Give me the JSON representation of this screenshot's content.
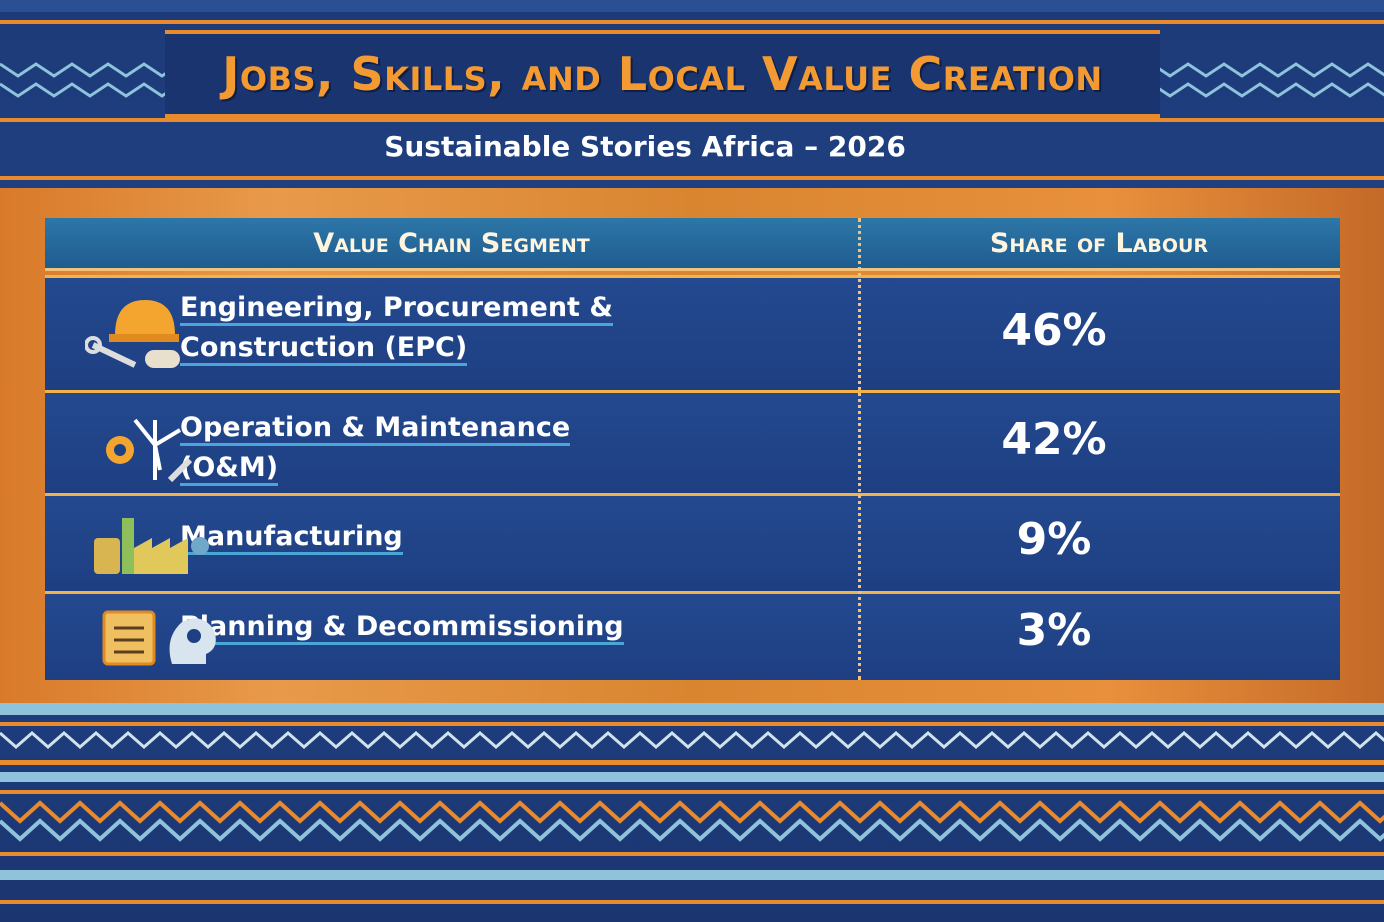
{
  "header": {
    "title": "Jobs, Skills, and Local Value Creation",
    "subtitle": "Sustainable Stories Africa – 2026"
  },
  "table": {
    "columns": [
      "Value Chain Segment",
      "Share of Labour"
    ],
    "rows": [
      [
        "Engineering, Procurement & Construction (EPC)",
        "46%"
      ],
      [
        "Operation & Maintenance (O&M)",
        "42%"
      ],
      [
        "Manufacturing",
        "9%"
      ],
      [
        "Planning & Decommissioning",
        "3%"
      ]
    ]
  }
}
